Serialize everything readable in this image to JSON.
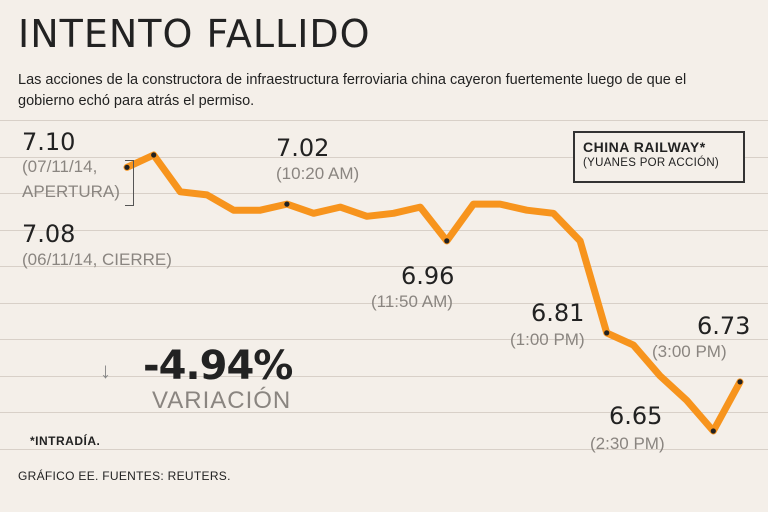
{
  "header": {
    "title": "INTENTO FALLIDO",
    "subtitle": "Las acciones de la constructora de infraestructura ferroviaria china cayeron fuertemente luego de que el gobierno echó para atrás el permiso."
  },
  "legend_box": {
    "title": "CHINA RAILWAY*",
    "unit": "(YUANES POR ACCIÓN)"
  },
  "annotations": {
    "open_value": "7.10",
    "open_note_1": "(07/11/14,",
    "open_note_2": "APERTURA)",
    "close_value": "7.08",
    "close_note": "(06/11/14, CIERRE)",
    "a1_value": "7.02",
    "a1_note": "(10:20 AM)",
    "a2_value": "6.96",
    "a2_note": "(11:50 AM)",
    "a3_value": "6.81",
    "a3_note": "(1:00 PM)",
    "a4_value": "6.65",
    "a4_note": "(2:30 PM)",
    "a5_value": "6.73",
    "a5_note": "(3:00 PM)"
  },
  "change": {
    "value": "-4.94%",
    "label": "VARIACIÓN"
  },
  "note": "*INTRADÍA.",
  "footer": "GRÁFICO EE. FUENTES: REUTERS.",
  "colors": {
    "line": "#f7941d",
    "marker": "#222222",
    "background": "#f4efe9"
  },
  "chart_data": {
    "type": "line",
    "title": "CHINA RAILWAY*",
    "ylabel": "(YUANES POR ACCIÓN)",
    "ylim": [
      6.6,
      7.15
    ],
    "series": [
      {
        "name": "CHINA RAILWAY",
        "values": [
          7.08,
          7.1,
          7.04,
          7.035,
          7.01,
          7.01,
          7.02,
          7.005,
          7.015,
          7.0,
          7.005,
          7.015,
          6.96,
          7.02,
          7.02,
          7.01,
          7.005,
          6.96,
          6.81,
          6.79,
          6.74,
          6.7,
          6.65,
          6.73
        ],
        "highlighted": [
          0,
          1,
          6,
          12,
          18,
          22,
          23
        ]
      }
    ]
  }
}
